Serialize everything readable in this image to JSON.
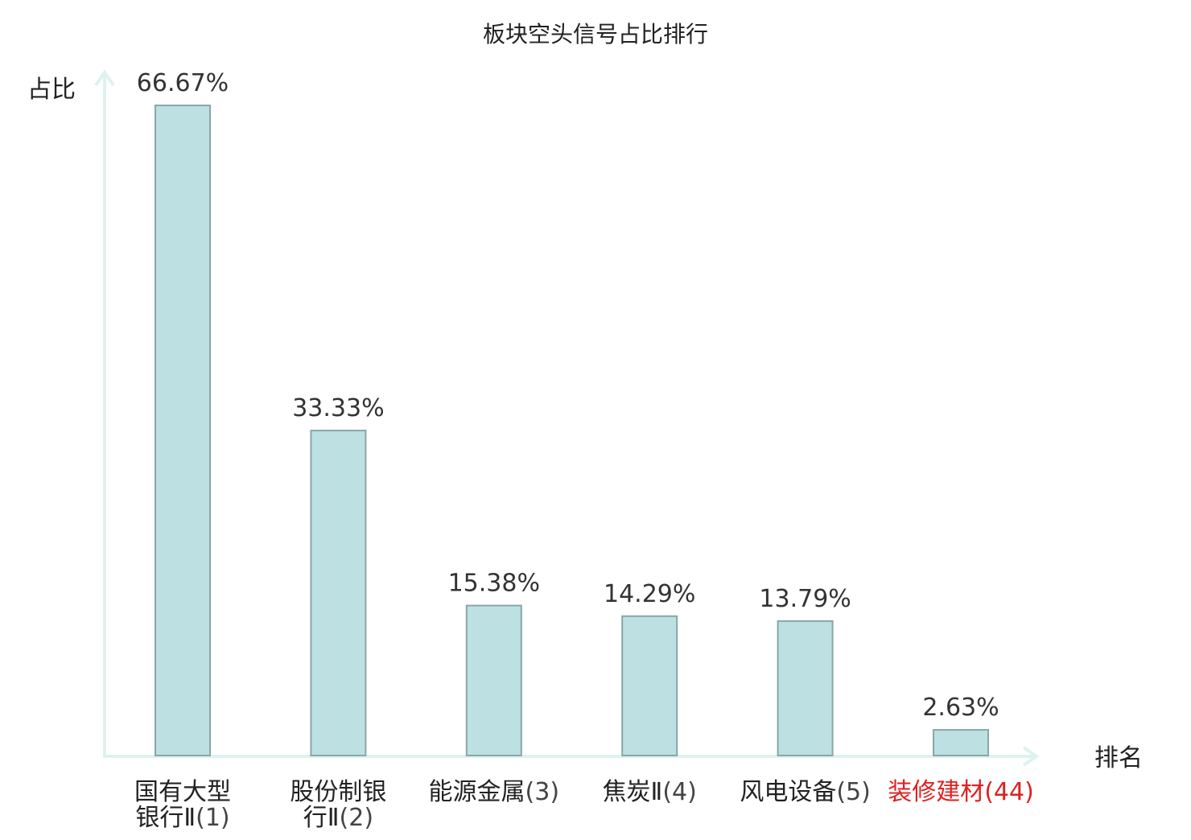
{
  "chart_data": {
    "type": "bar",
    "title": "板块空头信号占比排行",
    "ylabel": "占比",
    "xlabel": "排名",
    "ylim": [
      0,
      70
    ],
    "grid": false,
    "categories": [
      {
        "name_lines": [
          "国有大型",
          "银行Ⅱ"
        ],
        "rank": "(1)",
        "highlight": false
      },
      {
        "name_lines": [
          "股份制银",
          "行Ⅱ"
        ],
        "rank": "(2)",
        "highlight": false
      },
      {
        "name_lines": [
          "能源金属"
        ],
        "rank": "(3)",
        "highlight": false
      },
      {
        "name_lines": [
          "焦炭Ⅱ"
        ],
        "rank": "(4)",
        "highlight": false
      },
      {
        "name_lines": [
          "风电设备"
        ],
        "rank": "(5)",
        "highlight": false
      },
      {
        "name_lines": [
          "装修建材"
        ],
        "rank": "(44)",
        "highlight": true
      }
    ],
    "values": [
      66.67,
      33.33,
      15.38,
      14.29,
      13.79,
      2.63
    ],
    "value_labels": [
      "66.67%",
      "33.33%",
      "15.38%",
      "14.29%",
      "13.79%",
      "2.63%"
    ],
    "colors": {
      "bar_fill": "#bde0e2",
      "bar_stroke": "#8aa6a8",
      "axis": "#ddf2ee",
      "text": "#222222",
      "rank_text": "#444444",
      "highlight": "#e02020"
    }
  }
}
